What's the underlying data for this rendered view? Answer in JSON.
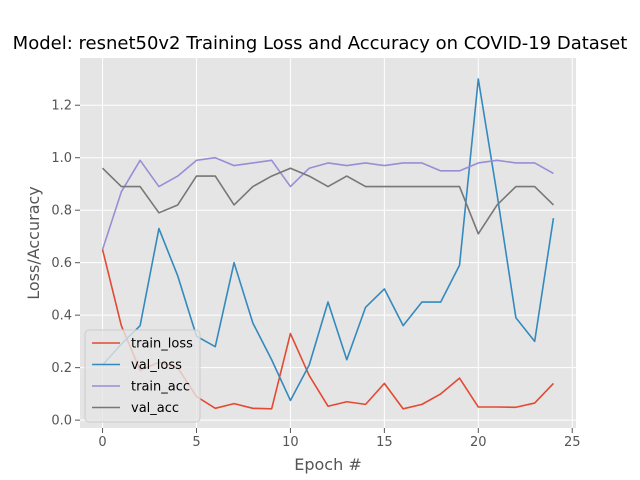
{
  "chart_data": {
    "type": "line",
    "title": "Model: resnet50v2 Training Loss and Accuracy on COVID-19 Dataset",
    "xlabel": "Epoch #",
    "ylabel": "Loss/Accuracy",
    "xlim": [
      -1.2,
      25.2
    ],
    "ylim": [
      -0.03,
      1.38
    ],
    "xticks": [
      0,
      5,
      10,
      15,
      20,
      25
    ],
    "yticks": [
      0.0,
      0.2,
      0.4,
      0.6,
      0.8,
      1.0,
      1.2
    ],
    "ytick_labels": [
      "0.0",
      "0.2",
      "0.4",
      "0.6",
      "0.8",
      "1.0",
      "1.2"
    ],
    "grid": true,
    "legend_position": "lower-left",
    "x": [
      0,
      1,
      2,
      3,
      4,
      5,
      6,
      7,
      8,
      9,
      10,
      11,
      12,
      13,
      14,
      15,
      16,
      17,
      18,
      19,
      20,
      21,
      22,
      23,
      24
    ],
    "series": [
      {
        "name": "train_loss",
        "color": "#E24A33",
        "values": [
          0.65,
          0.36,
          0.19,
          0.22,
          0.2,
          0.09,
          0.045,
          0.063,
          0.045,
          0.043,
          0.33,
          0.17,
          0.053,
          0.07,
          0.06,
          0.14,
          0.043,
          0.06,
          0.1,
          0.16,
          0.05,
          0.05,
          0.049,
          0.065,
          0.14
        ]
      },
      {
        "name": "val_loss",
        "color": "#348ABD",
        "values": [
          0.21,
          0.29,
          0.36,
          0.73,
          0.55,
          0.32,
          0.28,
          0.6,
          0.37,
          0.23,
          0.075,
          0.21,
          0.45,
          0.23,
          0.43,
          0.5,
          0.36,
          0.45,
          0.45,
          0.59,
          1.3,
          0.86,
          0.39,
          0.3,
          0.77
        ]
      },
      {
        "name": "train_acc",
        "color": "#988ED5",
        "values": [
          0.65,
          0.87,
          0.99,
          0.89,
          0.93,
          0.99,
          1.0,
          0.97,
          0.98,
          0.99,
          0.89,
          0.96,
          0.98,
          0.97,
          0.98,
          0.97,
          0.98,
          0.98,
          0.95,
          0.95,
          0.98,
          0.99,
          0.98,
          0.98,
          0.94
        ]
      },
      {
        "name": "val_acc",
        "color": "#777777",
        "values": [
          0.96,
          0.89,
          0.89,
          0.79,
          0.82,
          0.93,
          0.93,
          0.82,
          0.89,
          0.93,
          0.96,
          0.93,
          0.89,
          0.93,
          0.89,
          0.89,
          0.89,
          0.89,
          0.89,
          0.89,
          0.71,
          0.82,
          0.89,
          0.89,
          0.82
        ]
      }
    ]
  }
}
